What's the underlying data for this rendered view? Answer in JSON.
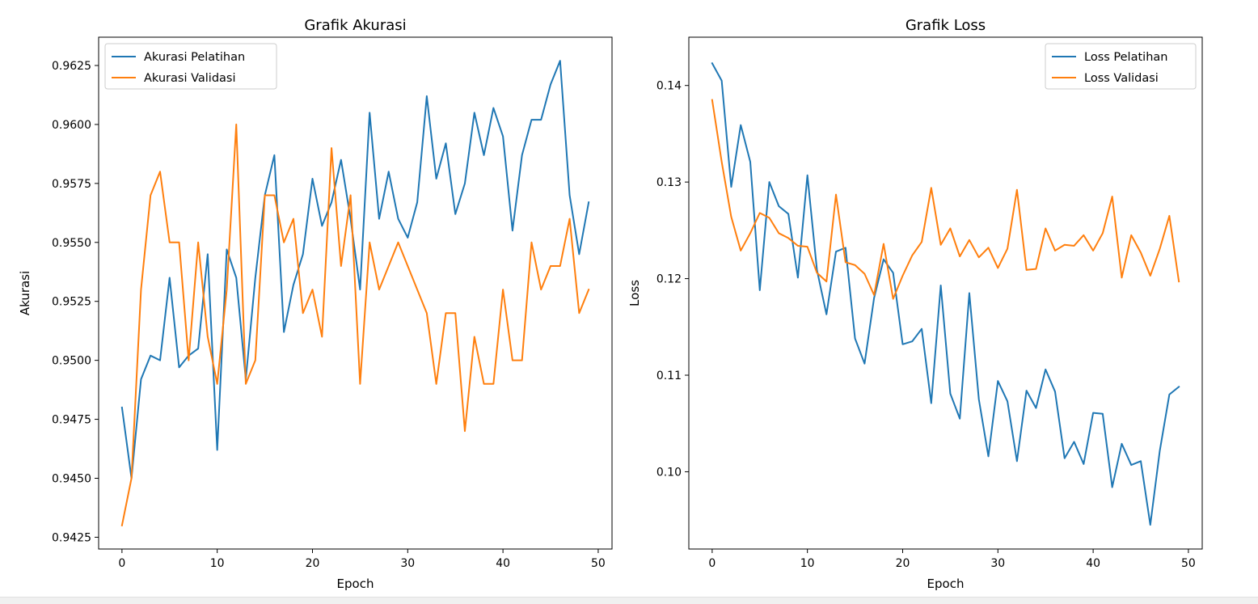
{
  "chart_data": [
    {
      "type": "line",
      "title": "Grafik Akurasi",
      "xlabel": "Epoch",
      "ylabel": "Akurasi",
      "xlim": [
        -2.45,
        51.45
      ],
      "ylim": [
        0.942,
        0.9637
      ],
      "xticks": [
        0,
        10,
        20,
        30,
        40,
        50
      ],
      "xtick_labels": [
        "0",
        "10",
        "20",
        "30",
        "40",
        "50"
      ],
      "yticks": [
        0.9425,
        0.945,
        0.9475,
        0.95,
        0.9525,
        0.955,
        0.9575,
        0.96,
        0.9625
      ],
      "ytick_labels": [
        "0.9425",
        "0.9450",
        "0.9475",
        "0.9500",
        "0.9525",
        "0.9550",
        "0.9575",
        "0.9600",
        "0.9625"
      ],
      "grid": false,
      "legend": "upper-left",
      "x": [
        0,
        1,
        2,
        3,
        4,
        5,
        6,
        7,
        8,
        9,
        10,
        11,
        12,
        13,
        14,
        15,
        16,
        17,
        18,
        19,
        20,
        21,
        22,
        23,
        24,
        25,
        26,
        27,
        28,
        29,
        30,
        31,
        32,
        33,
        34,
        35,
        36,
        37,
        38,
        39,
        40,
        41,
        42,
        43,
        44,
        45,
        46,
        47,
        48,
        49
      ],
      "series": [
        {
          "name": "Akurasi Pelatihan",
          "color": "#1f77b4",
          "values": [
            0.948,
            0.945,
            0.9492,
            0.9502,
            0.95,
            0.9535,
            0.9497,
            0.9502,
            0.9505,
            0.9545,
            0.9462,
            0.9547,
            0.9535,
            0.9492,
            0.9535,
            0.957,
            0.9587,
            0.9512,
            0.9532,
            0.9545,
            0.9577,
            0.9557,
            0.9567,
            0.9585,
            0.956,
            0.953,
            0.9605,
            0.956,
            0.958,
            0.956,
            0.9552,
            0.9567,
            0.9612,
            0.9577,
            0.9592,
            0.9562,
            0.9575,
            0.9605,
            0.9587,
            0.9607,
            0.9595,
            0.9555,
            0.9587,
            0.9602,
            0.9602,
            0.9617,
            0.9627,
            0.957,
            0.9545,
            0.9567
          ]
        },
        {
          "name": "Akurasi Validasi",
          "color": "#ff7f0e",
          "values": [
            0.943,
            0.945,
            0.953,
            0.957,
            0.958,
            0.955,
            0.955,
            0.95,
            0.955,
            0.951,
            0.949,
            0.953,
            0.96,
            0.949,
            0.95,
            0.957,
            0.957,
            0.955,
            0.956,
            0.952,
            0.953,
            0.951,
            0.959,
            0.954,
            0.957,
            0.949,
            0.955,
            0.953,
            0.954,
            0.955,
            0.954,
            0.953,
            0.952,
            0.949,
            0.952,
            0.952,
            0.947,
            0.951,
            0.949,
            0.949,
            0.953,
            0.95,
            0.95,
            0.955,
            0.953,
            0.954,
            0.954,
            0.956,
            0.952,
            0.953
          ]
        }
      ]
    },
    {
      "type": "line",
      "title": "Grafik Loss",
      "xlabel": "Epoch",
      "ylabel": "Loss",
      "xlim": [
        -2.45,
        51.45
      ],
      "ylim": [
        0.092,
        0.145
      ],
      "xticks": [
        0,
        10,
        20,
        30,
        40,
        50
      ],
      "xtick_labels": [
        "0",
        "10",
        "20",
        "30",
        "40",
        "50"
      ],
      "yticks": [
        0.1,
        0.11,
        0.12,
        0.13,
        0.14
      ],
      "ytick_labels": [
        "0.10",
        "0.11",
        "0.12",
        "0.13",
        "0.14"
      ],
      "grid": false,
      "legend": "upper-right",
      "x": [
        0,
        1,
        2,
        3,
        4,
        5,
        6,
        7,
        8,
        9,
        10,
        11,
        12,
        13,
        14,
        15,
        16,
        17,
        18,
        19,
        20,
        21,
        22,
        23,
        24,
        25,
        26,
        27,
        28,
        29,
        30,
        31,
        32,
        33,
        34,
        35,
        36,
        37,
        38,
        39,
        40,
        41,
        42,
        43,
        44,
        45,
        46,
        47,
        48,
        49
      ],
      "series": [
        {
          "name": "Loss Pelatihan",
          "color": "#1f77b4",
          "values": [
            0.1423,
            0.1405,
            0.1295,
            0.1359,
            0.1321,
            0.1188,
            0.13,
            0.1275,
            0.1267,
            0.1201,
            0.1307,
            0.1209,
            0.1163,
            0.1228,
            0.1232,
            0.1138,
            0.1112,
            0.118,
            0.122,
            0.1206,
            0.1132,
            0.1135,
            0.1148,
            0.1071,
            0.1193,
            0.1081,
            0.1055,
            0.1185,
            0.1075,
            0.1016,
            0.1094,
            0.1073,
            0.1011,
            0.1084,
            0.1066,
            0.1106,
            0.1083,
            0.1014,
            0.1031,
            0.1008,
            0.1061,
            0.106,
            0.0984,
            0.1029,
            0.1007,
            0.1011,
            0.0945,
            0.1022,
            0.108,
            0.1088
          ]
        },
        {
          "name": "Loss Validasi",
          "color": "#ff7f0e",
          "values": [
            0.1385,
            0.1321,
            0.1264,
            0.1229,
            0.1247,
            0.1268,
            0.1263,
            0.1247,
            0.1242,
            0.1234,
            0.1233,
            0.1206,
            0.1197,
            0.1287,
            0.1217,
            0.1214,
            0.1205,
            0.1183,
            0.1236,
            0.1179,
            0.1203,
            0.1224,
            0.1238,
            0.1294,
            0.1235,
            0.1252,
            0.1223,
            0.124,
            0.1222,
            0.1232,
            0.1211,
            0.1231,
            0.1292,
            0.1209,
            0.121,
            0.1252,
            0.1229,
            0.1235,
            0.1234,
            0.1245,
            0.1229,
            0.1247,
            0.1285,
            0.1201,
            0.1245,
            0.1227,
            0.1203,
            0.1231,
            0.1265,
            0.1197
          ]
        }
      ]
    }
  ]
}
